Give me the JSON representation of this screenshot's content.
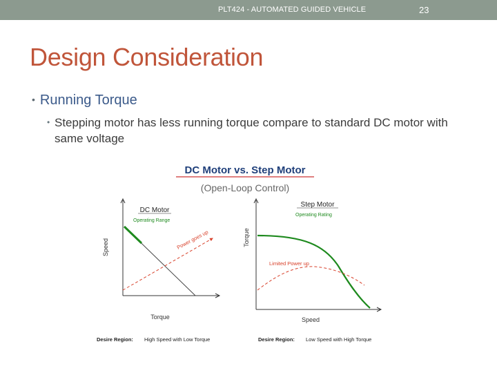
{
  "header": {
    "title": "PLT424 - AUTOMATED GUIDED VEHICLE",
    "slide_number": "23"
  },
  "slide": {
    "title": "Design Consideration",
    "bullet_level1": "Running Torque",
    "bullet_level2": "Stepping motor has less running torque compare to standard DC motor with same voltage"
  },
  "figure": {
    "title": "DC Motor vs. Step Motor",
    "subtitle": "(Open-Loop Control)",
    "colors": {
      "title": "#1f3f7a",
      "green": "#1e8a1e",
      "red": "#d8402a",
      "gray": "#555555"
    },
    "left_panel": {
      "name": "DC Motor",
      "legend": "Operating Range",
      "annotation": "Power goes up",
      "y_label": "Speed",
      "x_label": "Torque",
      "caption_label": "Desire Region:",
      "caption_text": "High Speed with Low Torque"
    },
    "right_panel": {
      "name": "Step Motor",
      "legend": "Operating Rating",
      "annotation": "Limited Power up",
      "y_label": "Torque",
      "x_label": "Speed",
      "caption_label": "Desire Region:",
      "caption_text": "Low Speed with High Torque"
    }
  }
}
